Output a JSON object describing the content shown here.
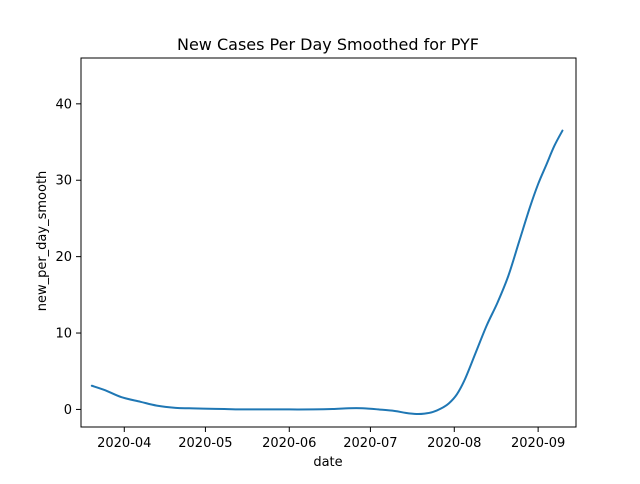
{
  "chart_data": {
    "type": "line",
    "title": "New Cases Per Day Smoothed for PYF",
    "xlabel": "date",
    "ylabel": "new_per_day_smooth",
    "x_axis_type": "date",
    "xlim": [
      "2020-03-16",
      "2020-09-15"
    ],
    "ylim": [
      -2.3,
      46
    ],
    "grid": false,
    "legend": "none",
    "x_ticks": [
      {
        "value": "2020-04-01",
        "label": "2020-04"
      },
      {
        "value": "2020-05-01",
        "label": "2020-05"
      },
      {
        "value": "2020-06-01",
        "label": "2020-06"
      },
      {
        "value": "2020-07-01",
        "label": "2020-07"
      },
      {
        "value": "2020-08-01",
        "label": "2020-08"
      },
      {
        "value": "2020-09-01",
        "label": "2020-09"
      }
    ],
    "y_ticks": [
      0,
      10,
      20,
      30,
      40
    ],
    "series": [
      {
        "color": "#1f77b4",
        "x": [
          "2020-03-20",
          "2020-03-25",
          "2020-03-31",
          "2020-04-07",
          "2020-04-13",
          "2020-04-20",
          "2020-04-25",
          "2020-04-30",
          "2020-05-08",
          "2020-05-15",
          "2020-05-23",
          "2020-06-01",
          "2020-06-10",
          "2020-06-17",
          "2020-06-23",
          "2020-06-28",
          "2020-07-04",
          "2020-07-10",
          "2020-07-14",
          "2020-07-18",
          "2020-07-21",
          "2020-07-24",
          "2020-07-27",
          "2020-07-30",
          "2020-08-02",
          "2020-08-05",
          "2020-08-09",
          "2020-08-13",
          "2020-08-17",
          "2020-08-21",
          "2020-08-25",
          "2020-08-29",
          "2020-09-01",
          "2020-09-04",
          "2020-09-07",
          "2020-09-10"
        ],
        "y": [
          3.1,
          2.5,
          1.6,
          1.0,
          0.5,
          0.2,
          0.15,
          0.1,
          0.05,
          0.0,
          0.0,
          0.0,
          0.0,
          0.05,
          0.15,
          0.15,
          0.0,
          -0.2,
          -0.45,
          -0.6,
          -0.55,
          -0.35,
          0.1,
          0.8,
          2.0,
          4.0,
          7.5,
          11.0,
          14.0,
          17.5,
          22.0,
          26.5,
          29.5,
          32.0,
          34.5,
          36.5
        ]
      }
    ]
  }
}
